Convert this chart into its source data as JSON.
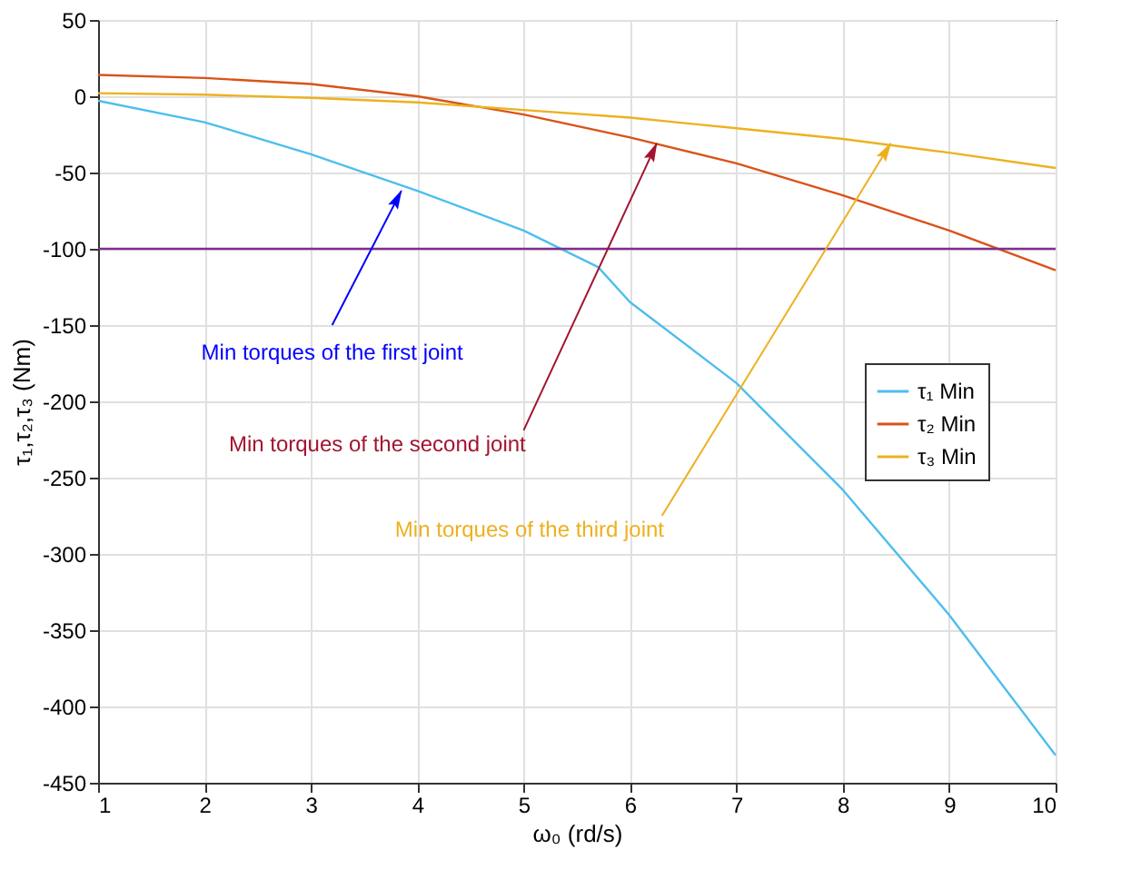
{
  "chart_data": {
    "type": "line",
    "xlabel": "ω₀ (rd/s)",
    "ylabel": "τ₁,τ₂,τ₃  (Nm)",
    "xlim": [
      1,
      10
    ],
    "xticks": [
      1,
      2,
      3,
      4,
      5,
      6,
      7,
      8,
      9,
      10
    ],
    "ylim": [
      -450,
      50
    ],
    "yticks": [
      -450,
      -400,
      -350,
      -300,
      -250,
      -200,
      -150,
      -100,
      -50,
      0,
      50
    ],
    "grid": true,
    "legend": "right",
    "marker": "none",
    "line_style": "solid",
    "series": [
      {
        "name": "τ₁ Min",
        "color": "#4dbeee",
        "x": [
          1,
          2,
          3,
          4,
          5,
          5.7,
          6,
          7,
          8,
          9,
          10
        ],
        "values": [
          -3,
          -17,
          -38,
          -62,
          -88,
          -112,
          -135,
          -188,
          -258,
          -340,
          -432
        ]
      },
      {
        "name": "τ₂ Min",
        "color": "#d95319",
        "x": [
          1,
          2,
          3,
          4,
          5,
          6,
          7,
          8,
          9,
          10
        ],
        "values": [
          14,
          12,
          8,
          0,
          -12,
          -27,
          -44,
          -65,
          -88,
          -114
        ]
      },
      {
        "name": "τ₃ Min",
        "color": "#edb120",
        "x": [
          1,
          2,
          3,
          4,
          5,
          6,
          7,
          8,
          9,
          10
        ],
        "values": [
          2,
          1,
          -1,
          -4,
          -9,
          -14,
          -21,
          -28,
          -37,
          -47
        ]
      }
    ],
    "ref_lines": [
      {
        "axis": "y",
        "value": -100,
        "color": "#7e2f8e"
      }
    ],
    "annotations": [
      {
        "text": "Min torques of the first joint",
        "x": 3.85,
        "y": -62
      },
      {
        "text": "Min torques of the second joint",
        "x": 6.25,
        "y": -31
      },
      {
        "text": "Min torques of the third joint",
        "x": 8.45,
        "y": -31
      }
    ]
  }
}
